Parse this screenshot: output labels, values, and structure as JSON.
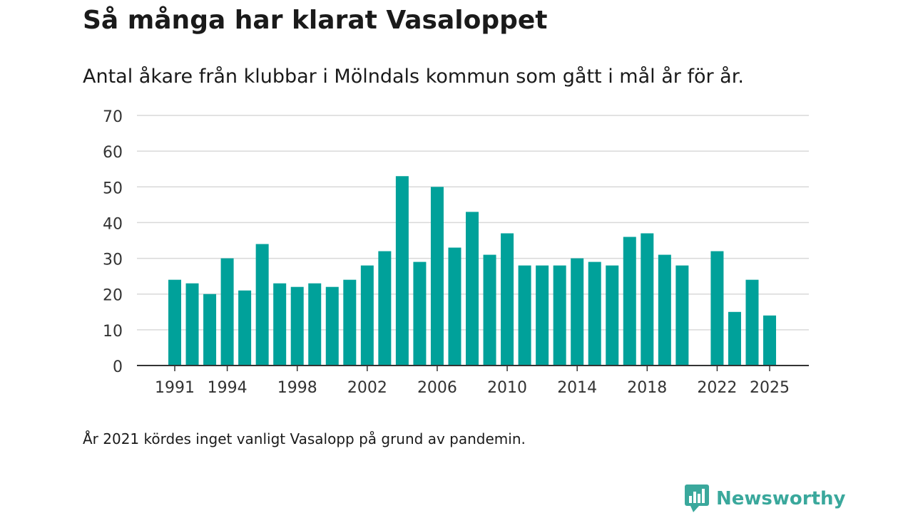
{
  "title": "Så många har klarat Vasaloppet",
  "subtitle": "Antal åkare från klubbar i Mölndals kommun som gått i mål år för år.",
  "footnote": "År 2021 kördes inget vanligt Vasalopp på grund av pandemin.",
  "brand": {
    "name": "Newsworthy",
    "icon": "newsworthy-logo-icon",
    "color": "#3aa89c"
  },
  "colors": {
    "bar": "#00a19a",
    "grid": "#d9d9d9",
    "axis": "#333333",
    "text": "#333333"
  },
  "chart_data": {
    "type": "bar",
    "title": "Så många har klarat Vasaloppet",
    "xlabel": "",
    "ylabel": "",
    "ylim": [
      0,
      70
    ],
    "yticks": [
      0,
      10,
      20,
      30,
      40,
      50,
      60,
      70
    ],
    "xticks": [
      1991,
      1994,
      1998,
      2002,
      2006,
      2010,
      2014,
      2018,
      2022,
      2025
    ],
    "grid": true,
    "categories": [
      1991,
      1992,
      1993,
      1994,
      1995,
      1996,
      1997,
      1998,
      1999,
      2000,
      2001,
      2002,
      2003,
      2004,
      2005,
      2006,
      2007,
      2008,
      2009,
      2010,
      2011,
      2012,
      2013,
      2014,
      2015,
      2016,
      2017,
      2018,
      2019,
      2020,
      2021,
      2022,
      2023,
      2024,
      2025
    ],
    "values": [
      24,
      23,
      20,
      30,
      21,
      34,
      23,
      22,
      23,
      22,
      24,
      28,
      32,
      53,
      29,
      50,
      33,
      43,
      31,
      37,
      28,
      28,
      28,
      30,
      29,
      28,
      36,
      37,
      31,
      28,
      null,
      32,
      15,
      24,
      14
    ]
  }
}
